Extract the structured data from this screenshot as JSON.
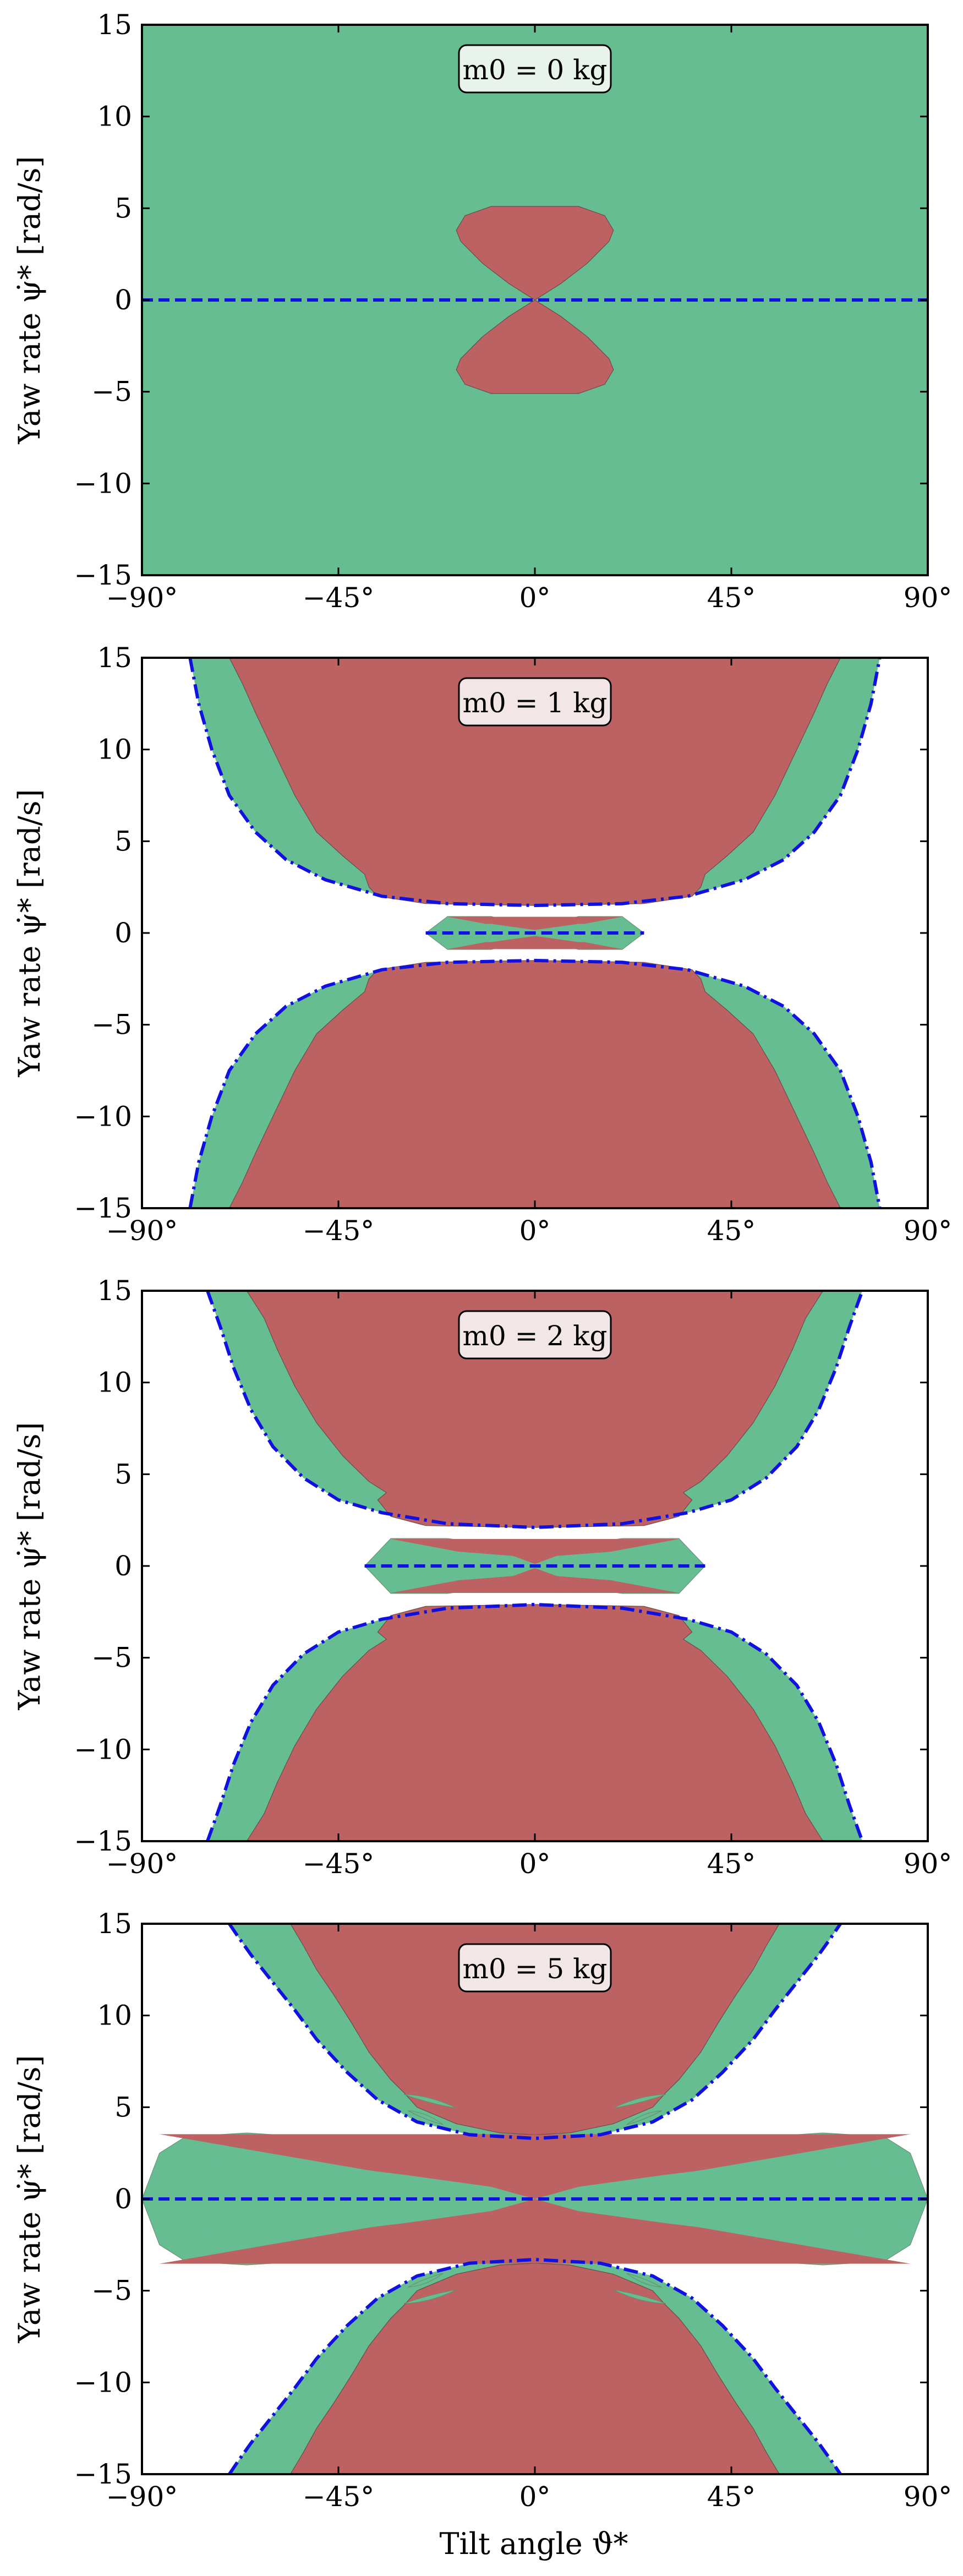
{
  "chart_data": {
    "type": "region-map",
    "xlabel": "Tilt angle ϑ*",
    "ylabel": "Yaw rate ψ̇* [rad/s]",
    "xlim": [
      -90,
      90
    ],
    "ylim": [
      -15,
      15
    ],
    "xticks": [
      -90,
      -45,
      0,
      45,
      90
    ],
    "xtick_labels": [
      "−90°",
      "−45°",
      "0°",
      "45°",
      "90°"
    ],
    "yticks": [
      -15,
      -10,
      -5,
      0,
      5,
      10,
      15
    ],
    "ytick_labels": [
      "−15",
      "−10",
      "−5",
      "0",
      "5",
      "10",
      "15"
    ],
    "colors": {
      "stable_region": "#66bd92",
      "unstable_region": "#bd6262",
      "boundary_line": "#1010e0"
    },
    "panels": [
      {
        "mass_label": "m0 = 0 kg",
        "mass_kg": 0,
        "feasible_fill": "full",
        "boundary_curve": [],
        "unstable_lobes": [
          {
            "x": [
              0,
              6,
              12,
              17,
              18,
              16,
              10,
              0
            ],
            "y": [
              0,
              0.9,
              2.0,
              3.2,
              3.8,
              4.6,
              5.1,
              5.1
            ]
          }
        ],
        "inner_lobe": [],
        "side_notches": []
      },
      {
        "mass_label": "m0 = 1 kg",
        "mass_kg": 1,
        "feasible_fill": "outside-boundary",
        "boundary_curve": {
          "x": [
            0,
            20,
            35,
            48,
            57,
            64,
            70,
            74,
            77,
            79
          ],
          "y": [
            1.5,
            1.6,
            2.0,
            2.9,
            4.0,
            5.5,
            7.5,
            10.0,
            12.5,
            15.0
          ]
        },
        "unstable_lobes": [
          {
            "x": [
              0,
              25,
              36,
              38,
              39,
              44,
              50,
              55,
              60,
              64,
              67,
              70
            ],
            "y": [
              1.5,
              1.6,
              2.0,
              2.5,
              3.2,
              4.2,
              5.5,
              7.5,
              10.0,
              12.0,
              13.6,
              15.0
            ]
          }
        ],
        "inner_lobe": {
          "x": [
            0,
            10,
            20,
            25
          ],
          "y": [
            0.3,
            0.9,
            0.9,
            0.0
          ]
        },
        "side_notches": []
      },
      {
        "mass_label": "m0 = 2 kg",
        "mass_kg": 2,
        "feasible_fill": "outside-boundary",
        "boundary_curve": {
          "x": [
            0,
            20,
            35,
            45,
            53,
            60,
            65,
            69,
            72,
            75
          ],
          "y": [
            2.1,
            2.3,
            2.9,
            3.6,
            4.8,
            6.5,
            8.5,
            10.8,
            13.0,
            15.0
          ]
        },
        "unstable_lobes": [
          {
            "x": [
              0,
              25,
              33,
              36,
              34,
              38,
              44,
              50,
              55,
              59,
              62,
              66
            ],
            "y": [
              2.1,
              2.2,
              2.7,
              3.6,
              4.0,
              4.6,
              6.0,
              7.8,
              9.8,
              11.8,
              13.5,
              15.0
            ]
          }
        ],
        "inner_lobe": {
          "x": [
            0,
            5,
            20,
            33,
            39
          ],
          "y": [
            0.2,
            1.0,
            1.5,
            1.5,
            0.0
          ]
        },
        "side_notches": []
      },
      {
        "mass_label": "m0 = 5 kg",
        "mass_kg": 5,
        "feasible_fill": "outside-boundary",
        "boundary_curve": {
          "x": [
            0,
            15,
            27,
            36,
            43,
            50,
            55,
            60,
            65,
            68,
            70
          ],
          "y": [
            3.3,
            3.5,
            4.2,
            5.4,
            6.9,
            8.7,
            10.3,
            11.8,
            13.3,
            14.3,
            15.0
          ]
        },
        "unstable_lobes": [
          {
            "x": [
              0,
              8,
              18,
              27,
              30,
              33,
              38,
              42,
              46,
              50,
              53,
              56
            ],
            "y": [
              3.5,
              3.6,
              4.1,
              5.0,
              5.8,
              6.5,
              8.0,
              9.6,
              11.1,
              12.5,
              13.8,
              15.0
            ]
          }
        ],
        "inner_lobe": {
          "x": [
            0,
            10,
            30,
            47,
            66,
            80,
            86,
            90
          ],
          "y": [
            0.0,
            1.2,
            2.4,
            3.3,
            3.6,
            3.4,
            2.5,
            0.0
          ]
        },
        "side_notches": [
          {
            "y": 5.2,
            "x_start": 18,
            "x_end": 30
          },
          {
            "y": 4.3,
            "x_start": 21,
            "x_end": 29
          }
        ]
      }
    ]
  }
}
